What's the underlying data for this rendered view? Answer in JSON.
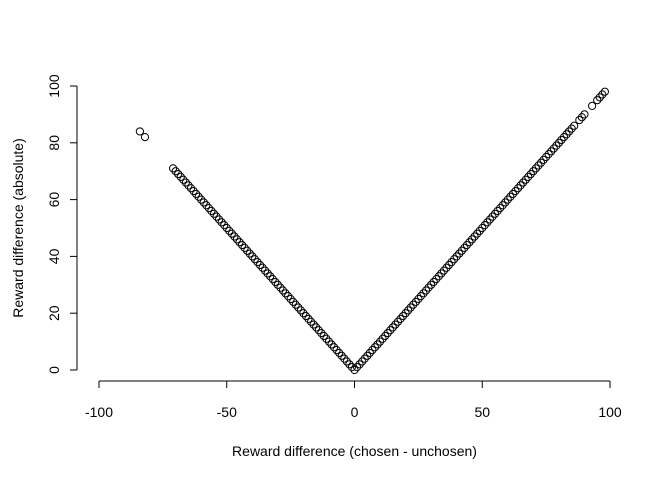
{
  "chart_data": {
    "type": "scatter",
    "title": "",
    "xlabel": "Reward difference (chosen - unchosen)",
    "ylabel": "Reward difference (absolute)",
    "xlim": [
      -100,
      100
    ],
    "ylim": [
      0,
      100
    ],
    "xticks": [
      -100,
      -50,
      0,
      50,
      100
    ],
    "yticks": [
      0,
      20,
      40,
      60,
      80,
      100
    ],
    "xtick_labels": [
      "-100",
      "-50",
      "0",
      "50",
      "100"
    ],
    "ytick_labels": [
      "0",
      "20",
      "40",
      "60",
      "80",
      "100"
    ],
    "marker": "open-circle",
    "marker_color": "#000000",
    "grid": false,
    "series": [
      {
        "x": [
          -84,
          -82,
          -71,
          -70,
          -69,
          -68,
          -67,
          -66,
          -65,
          -64,
          -63,
          -62,
          -61,
          -60,
          -59,
          -58,
          -57,
          -56,
          -55,
          -54,
          -53,
          -52,
          -51,
          -50,
          -49,
          -48,
          -47,
          -46,
          -45,
          -44,
          -43,
          -42,
          -41,
          -40,
          -39,
          -38,
          -37,
          -36,
          -35,
          -34,
          -33,
          -32,
          -31,
          -30,
          -29,
          -28,
          -27,
          -26,
          -25,
          -24,
          -23,
          -22,
          -21,
          -20,
          -19,
          -18,
          -17,
          -16,
          -15,
          -14,
          -13,
          -12,
          -11,
          -10,
          -9,
          -8,
          -7,
          -6,
          -5,
          -4,
          -3,
          -2,
          -1,
          0,
          1,
          2,
          3,
          4,
          5,
          6,
          7,
          8,
          9,
          10,
          11,
          12,
          13,
          14,
          15,
          16,
          17,
          18,
          19,
          20,
          21,
          22,
          23,
          24,
          25,
          26,
          27,
          28,
          29,
          30,
          31,
          32,
          33,
          34,
          35,
          36,
          37,
          38,
          39,
          40,
          41,
          42,
          43,
          44,
          45,
          46,
          47,
          48,
          49,
          50,
          51,
          52,
          53,
          54,
          55,
          56,
          57,
          58,
          59,
          60,
          61,
          62,
          63,
          64,
          65,
          66,
          67,
          68,
          69,
          70,
          71,
          72,
          73,
          74,
          75,
          76,
          77,
          78,
          79,
          80,
          81,
          82,
          83,
          84,
          85,
          86,
          88,
          89,
          90,
          93,
          95,
          96,
          97,
          98
        ],
        "y": [
          84,
          82,
          71,
          70,
          69,
          68,
          67,
          66,
          65,
          64,
          63,
          62,
          61,
          60,
          59,
          58,
          57,
          56,
          55,
          54,
          53,
          52,
          51,
          50,
          49,
          48,
          47,
          46,
          45,
          44,
          43,
          42,
          41,
          40,
          39,
          38,
          37,
          36,
          35,
          34,
          33,
          32,
          31,
          30,
          29,
          28,
          27,
          26,
          25,
          24,
          23,
          22,
          21,
          20,
          19,
          18,
          17,
          16,
          15,
          14,
          13,
          12,
          11,
          10,
          9,
          8,
          7,
          6,
          5,
          4,
          3,
          2,
          1,
          0,
          1,
          2,
          3,
          4,
          5,
          6,
          7,
          8,
          9,
          10,
          11,
          12,
          13,
          14,
          15,
          16,
          17,
          18,
          19,
          20,
          21,
          22,
          23,
          24,
          25,
          26,
          27,
          28,
          29,
          30,
          31,
          32,
          33,
          34,
          35,
          36,
          37,
          38,
          39,
          40,
          41,
          42,
          43,
          44,
          45,
          46,
          47,
          48,
          49,
          50,
          51,
          52,
          53,
          54,
          55,
          56,
          57,
          58,
          59,
          60,
          61,
          62,
          63,
          64,
          65,
          66,
          67,
          68,
          69,
          70,
          71,
          72,
          73,
          74,
          75,
          76,
          77,
          78,
          79,
          80,
          81,
          82,
          83,
          84,
          85,
          86,
          88,
          89,
          90,
          93,
          95,
          96,
          97,
          98
        ]
      }
    ]
  }
}
